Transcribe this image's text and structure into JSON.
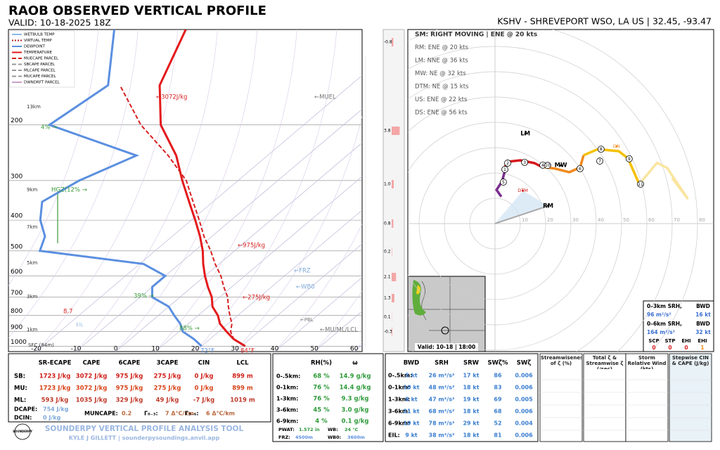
{
  "header": {
    "title": "RAOB OBSERVED VERTICAL PROFILE",
    "valid": "VALID: 10-18-2025 18Z",
    "station": "KSHV - SHREVEPORT WSO, LA US | 32.45, -93.47"
  },
  "skewt": {
    "plim": [
      1040,
      100
    ],
    "tlim": [
      -27,
      62
    ],
    "pressure_ticks": [
      200,
      300,
      400,
      500,
      600,
      700,
      800,
      900,
      1000
    ],
    "temp_ticks": [
      -20,
      -10,
      0,
      10,
      20,
      30,
      40,
      50,
      60
    ],
    "levels": [
      1000,
      950,
      900,
      850,
      800,
      750,
      700,
      650,
      600,
      550,
      500,
      450,
      400,
      350,
      300,
      250,
      200,
      150,
      100
    ],
    "legend": [
      {
        "name": "WETBULB TEMP",
        "color": "#8cb8ea",
        "style": "solid"
      },
      {
        "name": "VIRTUAL TEMP",
        "color": "#b02020",
        "style": "dotted"
      },
      {
        "name": "DEWPOINT",
        "color": "#5b8fe0",
        "style": "solid",
        "values": [
          20,
          16,
          11,
          8,
          4,
          0,
          -7,
          -10,
          -10,
          -19,
          -49,
          -52,
          -58,
          -63,
          -60,
          -53,
          -84,
          -81,
          -96
        ]
      },
      {
        "name": "TEMPERATURE",
        "color": "#e41a1c",
        "style": "solid",
        "values": [
          31,
          26,
          22,
          18,
          15,
          11,
          8,
          4,
          0,
          -4,
          -8,
          -13,
          -19,
          -26,
          -34,
          -43,
          -56,
          -68,
          -78
        ]
      },
      {
        "name": "MUECAPE PARCEL",
        "color": "#d62020",
        "style": "dashed",
        "values": [
          31,
          26,
          23,
          21,
          18,
          15,
          12,
          8,
          4,
          -1,
          -6,
          -12,
          -18,
          -25,
          -33,
          -45,
          -61,
          -78,
          null
        ]
      },
      {
        "name": "SBCAPE PARCEL",
        "color": "#999999",
        "style": "dashed"
      },
      {
        "name": "MLCAPE PARCEL",
        "color": "#999999",
        "style": "dashed"
      },
      {
        "name": "MUCAPE PARCEL",
        "color": "#999999",
        "style": "dashed"
      },
      {
        "name": "DWNDRFT PARCEL",
        "color": "#c8a0c8",
        "style": "solid"
      }
    ],
    "annotations": [
      "13km",
      "9km",
      "7km",
      "5km",
      "3km",
      "1km",
      "SFC (84m)",
      "←3072J/kg",
      "←975J/kg",
      "←275J/kg",
      "←MUEL",
      "←FRZ",
      "←WB0",
      "←PBL",
      "←MU/ML/LCL",
      "HGZ(12% →",
      "4% →",
      "39% →",
      "88% →",
      "8.7",
      "EIL",
      "72°F",
      "84°F"
    ],
    "strip": {
      "values": [
        -0.8,
        3.8,
        1,
        0.8,
        0.2,
        2.1,
        1.3,
        0.1,
        -0.3
      ],
      "value_labels": [
        "-0.8",
        "3.8",
        "1.0",
        "0.8",
        "0.2",
        "2.1",
        "1.3",
        "0.1",
        "-0.3"
      ]
    }
  },
  "hodograph": {
    "sm_lines": [
      "SM: RIGHT MOVING | ENE @ 20 kts",
      "RM: ENE @ 20 kts",
      "LM: NNE @ 36 kts",
      "MW: NE @ 32 kts",
      "DTM: NE @ 15 kts",
      "US: ENE @ 22 kts",
      "DS: ENE @ 56 kts"
    ],
    "rings": [
      10,
      20,
      30,
      40,
      50,
      60,
      70,
      80
    ],
    "trace": [
      {
        "color": "#7b2d8e",
        "u": [
          2.5,
          0.6,
          2.8,
          3.9
        ],
        "v": [
          10.6,
          13.3,
          16.7,
          20.8
        ]
      },
      {
        "color": "#d7191c",
        "u": [
          3.9,
          4.4,
          10,
          15.6,
          18.3
        ],
        "v": [
          20.8,
          24.4,
          25,
          23.9,
          22.5
        ]
      },
      {
        "color": "#f08a1c",
        "u": [
          18.3,
          23.9,
          29.4,
          33.6,
          35
        ],
        "v": [
          22.5,
          21.7,
          20.3,
          22.2,
          27
        ]
      },
      {
        "color": "#f5c000",
        "u": [
          35,
          40.6,
          48.9,
          52.5,
          57
        ],
        "v": [
          27,
          29.4,
          28.6,
          25.8,
          15.6
        ]
      },
      {
        "color": "#fae5a0",
        "u": [
          57,
          64,
          68,
          72,
          76,
          70
        ],
        "v": [
          15.6,
          24,
          22,
          16,
          10,
          18
        ]
      }
    ],
    "markers": [
      {
        "label": "1",
        "u": 3.9,
        "v": 21.4
      },
      {
        "label": "2",
        "u": 5,
        "v": 23.9
      },
      {
        "label": "3",
        "u": 11.7,
        "v": 24.2
      },
      {
        "label": "4",
        "u": 18.9,
        "v": 23.1
      },
      {
        "label": "5",
        "u": 3.3,
        "v": 16.4
      },
      {
        "label": "6",
        "u": 33.6,
        "v": 21.7
      },
      {
        "label": "7",
        "u": 41.4,
        "v": 24.7
      },
      {
        "label": "8",
        "u": 41.9,
        "v": 29.4
      },
      {
        "label": "9",
        "u": 53,
        "v": 25.6
      },
      {
        "label": "10",
        "u": 20.8,
        "v": 23
      },
      {
        "label": "11",
        "u": 57.5,
        "v": 15.6
      }
    ],
    "motions": [
      {
        "label": "RM",
        "u": 21,
        "v": 7
      },
      {
        "label": "LM",
        "u": 12,
        "v": 35.5
      },
      {
        "label": "MW",
        "u": 26,
        "v": 23
      },
      {
        "label": "DTM",
        "u": 11,
        "v": 13
      },
      {
        "label": "DN",
        "u": 48,
        "v": 30.5
      }
    ],
    "radar_valid": "Valid: 10-18 | 18:00",
    "srh": {
      "h1": [
        "0–3km SRH,",
        "BWD"
      ],
      "v1": [
        "96 m²/s²",
        "16 kt"
      ],
      "h2": [
        "0–6km SRH,",
        "BWD"
      ],
      "v2": [
        "164 m²/s²",
        "32 kt"
      ],
      "indices": [
        "SCP",
        "STP",
        "EHI",
        "EHI"
      ],
      "index_values": [
        0,
        0,
        0,
        1
      ]
    }
  },
  "thermo": {
    "headers": [
      "SR-ECAPE",
      "CAPE",
      "6CAPE",
      "3CAPE",
      "CIN",
      "LCL"
    ],
    "rows": [
      [
        "SB:",
        "1723 J/kg",
        "3072 J/kg",
        "975 J/kg",
        "275 J/kg",
        "0 J/kg",
        "899 m"
      ],
      [
        "MU:",
        "1723 J/kg",
        "3072 J/kg",
        "975 J/kg",
        "275 J/kg",
        "0 J/kg",
        "899 m"
      ],
      [
        "ML:",
        "593 J/kg",
        "1035 J/kg",
        "329 J/kg",
        "49 J/kg",
        "-7 J/kg",
        "1019 m"
      ]
    ],
    "extras": [
      [
        "DCAPE:",
        "754 J/kg"
      ],
      [
        "DCIN:",
        "0 J/kg"
      ],
      [
        "MUNCAPE:",
        "0.2"
      ],
      [
        "Γ₀₋₃:",
        "7 Δ°C/km"
      ],
      [
        "Γ₃₋₆:",
        "6 Δ°C/km"
      ]
    ]
  },
  "footer": {
    "logo": "SOUNDERPY",
    "tool": "SOUNDERPY VERTICAL PROFILE ANALYSIS TOOL",
    "credit": "KYLE J GILLETT | sounderpysoundings.anvil.app"
  },
  "moisture": {
    "headers": [
      "RH(%)",
      "ω"
    ],
    "rows": [
      [
        "0-.5km:",
        "68 %",
        "14.9 g/kg"
      ],
      [
        "0-1km:",
        "76 %",
        "14.4 g/kg"
      ],
      [
        "1-3km:",
        "76 %",
        "9.3 g/kg"
      ],
      [
        "3-6km:",
        "45 %",
        "3.0 g/kg"
      ],
      [
        "6-9km:",
        "4 %",
        "0.1 g/kg"
      ]
    ],
    "extras": [
      [
        "PWAT:",
        "1.572 in"
      ],
      [
        "WB:",
        "24 °C"
      ],
      [
        "FRZ:",
        "4500m"
      ],
      [
        "WB0:",
        "3600m"
      ]
    ]
  },
  "kinematic": {
    "headers": [
      "BWD",
      "SRH",
      "SRW",
      "SWζ%",
      "SWζ"
    ],
    "rows": [
      [
        "0-.5km:",
        "5 kt",
        "26 m²/s²",
        "17 kt",
        "86",
        "0.006"
      ],
      [
        "0-1km:",
        "10 kt",
        "48 m²/s²",
        "18 kt",
        "83",
        "0.006"
      ],
      [
        "1-3km:",
        "8 kt",
        "47 m²/s²",
        "19 kt",
        "69",
        "0.005"
      ],
      [
        "3-6km:",
        "21 kt",
        "68 m²/s²",
        "18 kt",
        "68",
        "0.006"
      ],
      [
        "6-9km:",
        "19 kt",
        "78 m²/s²",
        "29 kt",
        "52",
        "0.004"
      ],
      [
        "EIL:",
        "9 kt",
        "38 m²/s²",
        "18 kt",
        "81",
        "0.006"
      ]
    ]
  },
  "panels": [
    "Streamwiseness of ζ (%)",
    "Total ζ & Streamwise ζ (/sec)",
    "Storm Relative Wind (kts)",
    "Stepwise CIN & CAPE (J/kg)"
  ]
}
